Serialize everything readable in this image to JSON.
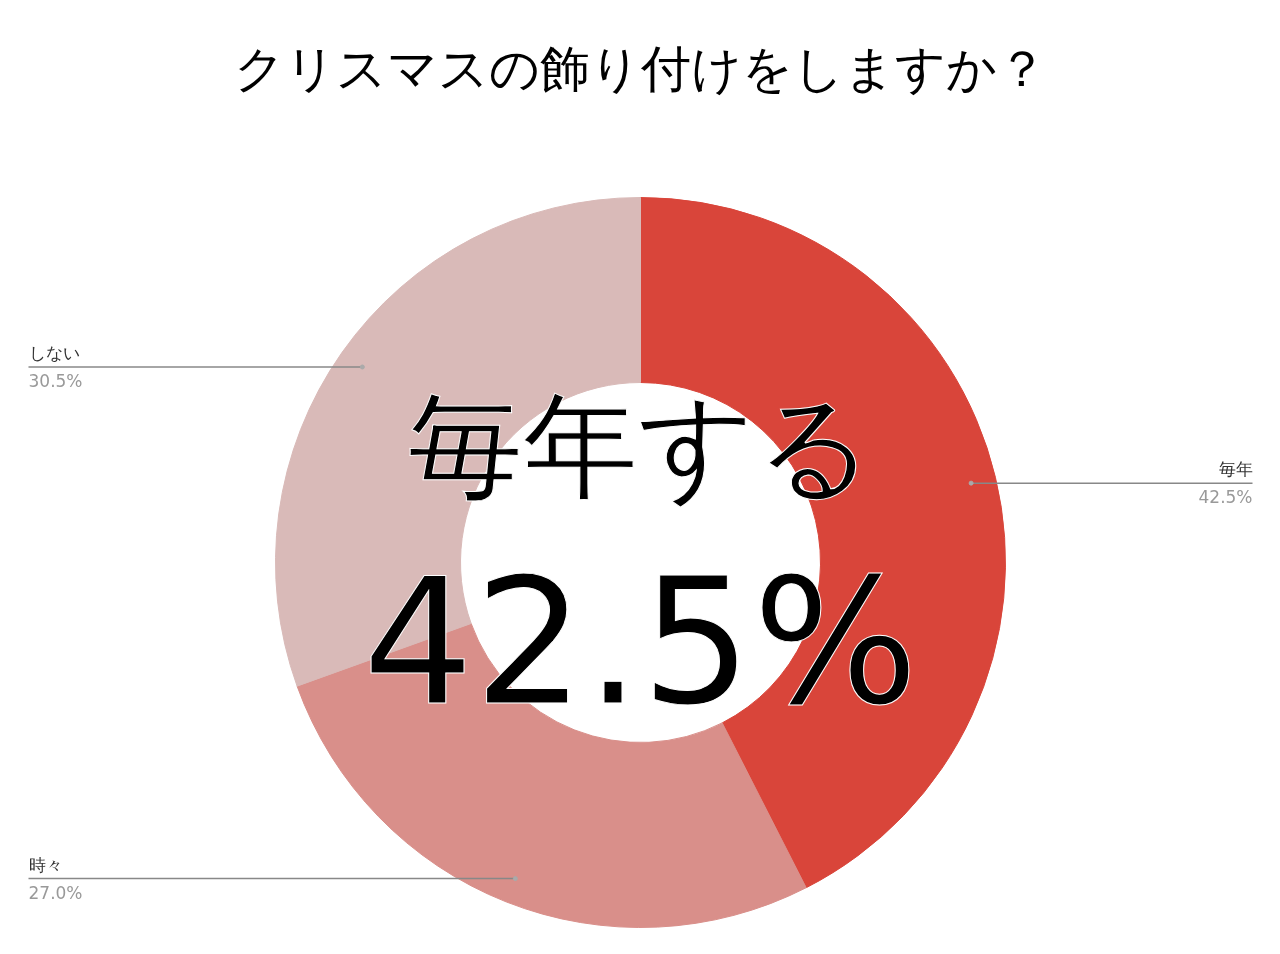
{
  "chart_data": {
    "type": "donut",
    "title": "クリスマスの飾り付けをしますか？",
    "categories": [
      "毎年",
      "時々",
      "しない"
    ],
    "values": [
      42.5,
      27.0,
      30.5
    ],
    "colors": [
      "#d9453a",
      "#d98f8a",
      "#d9bab8"
    ],
    "value_labels": [
      "42.5%",
      "27.0%",
      "30.5%"
    ],
    "annotations": [
      "毎年する",
      "42.5%"
    ]
  }
}
